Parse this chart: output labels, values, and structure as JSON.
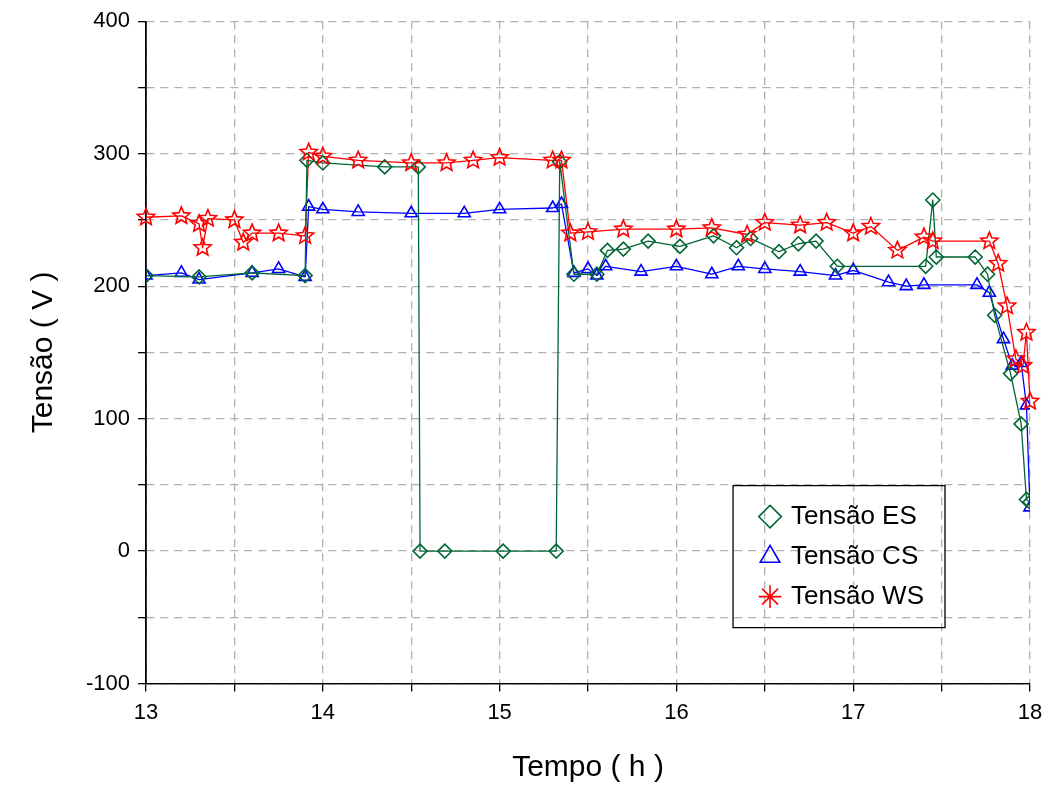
{
  "chart_data": {
    "type": "line",
    "xlabel": "Tempo ( h )",
    "ylabel": "Tensão ( V )",
    "xlim": [
      13,
      18
    ],
    "xticks": [
      13,
      {
        "value": 13.5,
        "label": null
      },
      14,
      {
        "value": 14.5,
        "label": null
      },
      15,
      {
        "value": 15.5,
        "label": null
      },
      16,
      {
        "value": 16.5,
        "label": null
      },
      17,
      {
        "value": 17.5,
        "label": null
      },
      18
    ],
    "ylim": [
      -100,
      400
    ],
    "yticks": [
      -100,
      {
        "value": -50,
        "label": null
      },
      0,
      {
        "value": 50,
        "label": null
      },
      100,
      {
        "value": 150,
        "label": null
      },
      200,
      {
        "value": 250,
        "label": null
      },
      300,
      {
        "value": 350,
        "label": null
      },
      400
    ],
    "grid": true,
    "legend": "bottom right",
    "line_style": "solid",
    "series": [
      {
        "name": "Tensão ES",
        "color": "#006633",
        "marker": "diamond",
        "x": [
          13,
          13.3,
          13.6,
          13.9,
          13.91,
          14,
          14.35,
          14.54,
          14.55,
          14.69,
          15.02,
          15.32,
          15.34,
          15.42,
          15.55,
          15.61,
          15.7,
          15.84,
          16.02,
          16.21,
          16.34,
          16.42,
          16.58,
          16.69,
          16.79,
          16.91,
          17.41,
          17.45,
          17.47,
          17.69,
          17.76,
          17.8,
          17.89,
          17.95,
          17.98,
          18
        ],
        "values": [
          208,
          207,
          210,
          208,
          295,
          293,
          290,
          290,
          0,
          0,
          0,
          0,
          294,
          209,
          209,
          227,
          228,
          234,
          230,
          238,
          229,
          236,
          226,
          232,
          234,
          215,
          215,
          265,
          222,
          222,
          209,
          178,
          134,
          96,
          39,
          37
        ]
      },
      {
        "name": "Tensão CS",
        "color": "#0000ff",
        "marker": "triangle",
        "x": [
          13,
          13.2,
          13.3,
          13.6,
          13.75,
          13.9,
          13.92,
          14,
          14.2,
          14.5,
          14.8,
          15,
          15.3,
          15.35,
          15.42,
          15.5,
          15.55,
          15.6,
          15.8,
          16,
          16.2,
          16.35,
          16.5,
          16.7,
          16.9,
          17,
          17.2,
          17.3,
          17.4,
          17.7,
          17.77,
          17.85,
          17.9,
          17.95,
          17.98,
          18
        ],
        "values": [
          208,
          210,
          205,
          210,
          213,
          207,
          260,
          258,
          256,
          255,
          255,
          258,
          259,
          262,
          210,
          213,
          208,
          215,
          211,
          215,
          209,
          215,
          213,
          211,
          208,
          212,
          203,
          200,
          201,
          201,
          195,
          160,
          140,
          142,
          110,
          33
        ]
      },
      {
        "name": "Tensão WS",
        "color": "#ff0000",
        "marker": "star",
        "x": [
          13,
          13.2,
          13.3,
          13.32,
          13.35,
          13.5,
          13.55,
          13.6,
          13.75,
          13.9,
          13.92,
          14,
          14.2,
          14.5,
          14.7,
          14.85,
          15,
          15.3,
          15.35,
          15.4,
          15.5,
          15.7,
          16,
          16.2,
          16.4,
          16.5,
          16.7,
          16.85,
          17,
          17.1,
          17.25,
          17.4,
          17.45,
          17.77,
          17.82,
          17.87,
          17.92,
          17.96,
          17.98,
          18
        ],
        "values": [
          252,
          253,
          247,
          229,
          251,
          250,
          233,
          240,
          240,
          238,
          301,
          298,
          295,
          293,
          293,
          295,
          297,
          295,
          295,
          240,
          241,
          243,
          243,
          244,
          239,
          248,
          246,
          248,
          240,
          245,
          227,
          237,
          234,
          234,
          217,
          185,
          145,
          140,
          165,
          113
        ]
      }
    ]
  }
}
